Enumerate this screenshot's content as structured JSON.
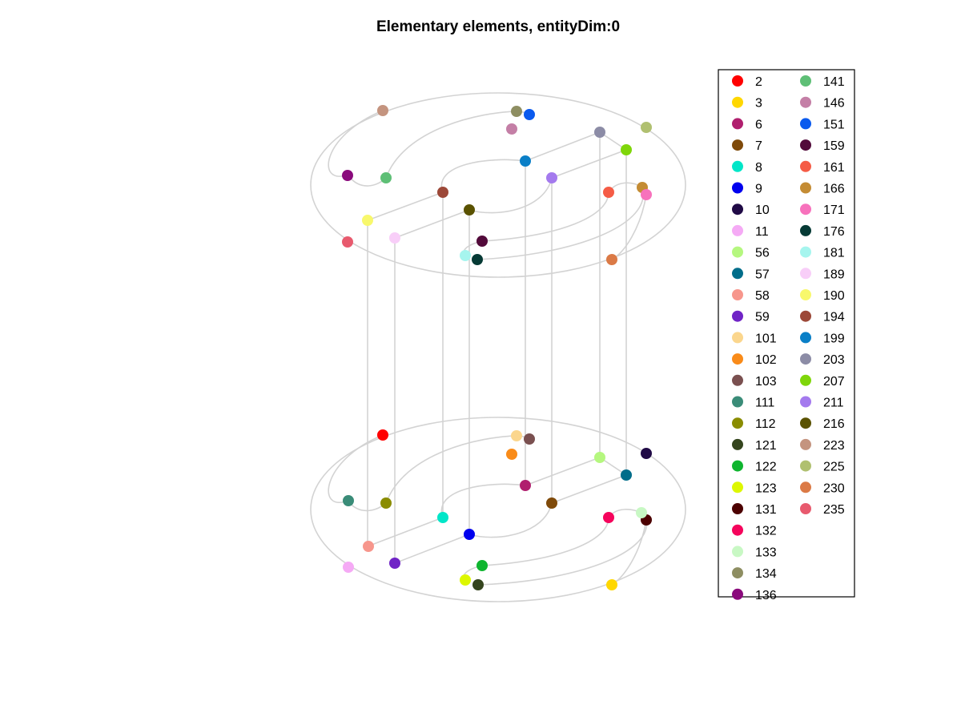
{
  "title": "Elementary elements, entityDim:0",
  "chart_data": {
    "type": "scatter",
    "plot_kind": "3d-point-scatter-over-wireframe-geometry",
    "title": "Elementary elements, entityDim:0",
    "grid": false,
    "axes_visible": false,
    "geometry_color": "#d3d3d3",
    "legend_position": "right",
    "legend_columns": 2,
    "series": [
      {
        "name": "2",
        "color": "#ff0000"
      },
      {
        "name": "3",
        "color": "#ffd700"
      },
      {
        "name": "6",
        "color": "#b01f6e"
      },
      {
        "name": "7",
        "color": "#7f4a0a"
      },
      {
        "name": "8",
        "color": "#00e6c8"
      },
      {
        "name": "9",
        "color": "#0000ee"
      },
      {
        "name": "10",
        "color": "#200a46"
      },
      {
        "name": "11",
        "color": "#f5aaf5"
      },
      {
        "name": "56",
        "color": "#b5f77f"
      },
      {
        "name": "57",
        "color": "#006d8a"
      },
      {
        "name": "58",
        "color": "#f7968c"
      },
      {
        "name": "59",
        "color": "#7024c6"
      },
      {
        "name": "101",
        "color": "#fbd68d"
      },
      {
        "name": "102",
        "color": "#f98b19"
      },
      {
        "name": "103",
        "color": "#7a5050"
      },
      {
        "name": "111",
        "color": "#3a8c78"
      },
      {
        "name": "112",
        "color": "#8a8c00"
      },
      {
        "name": "121",
        "color": "#35451e"
      },
      {
        "name": "122",
        "color": "#0fb52f"
      },
      {
        "name": "123",
        "color": "#ddf700"
      },
      {
        "name": "131",
        "color": "#4c0000"
      },
      {
        "name": "132",
        "color": "#f5045c"
      },
      {
        "name": "133",
        "color": "#c8f8c4"
      },
      {
        "name": "134",
        "color": "#8e8e62"
      },
      {
        "name": "136",
        "color": "#8a0a7c"
      },
      {
        "name": "141",
        "color": "#5ebf76"
      },
      {
        "name": "146",
        "color": "#c47fa6"
      },
      {
        "name": "151",
        "color": "#0a5aee"
      },
      {
        "name": "159",
        "color": "#520a3a"
      },
      {
        "name": "161",
        "color": "#f55c46"
      },
      {
        "name": "166",
        "color": "#c48c34"
      },
      {
        "name": "171",
        "color": "#f772bc"
      },
      {
        "name": "176",
        "color": "#063a35"
      },
      {
        "name": "181",
        "color": "#a6f5ee"
      },
      {
        "name": "189",
        "color": "#f8cef8"
      },
      {
        "name": "190",
        "color": "#f8f86c"
      },
      {
        "name": "194",
        "color": "#9c4838"
      },
      {
        "name": "199",
        "color": "#0a7fc7"
      },
      {
        "name": "203",
        "color": "#8c8ca6"
      },
      {
        "name": "207",
        "color": "#7fd60a"
      },
      {
        "name": "211",
        "color": "#a47aee"
      },
      {
        "name": "216",
        "color": "#5a5200"
      },
      {
        "name": "223",
        "color": "#c4947f"
      },
      {
        "name": "225",
        "color": "#b0c070"
      },
      {
        "name": "230",
        "color": "#db7a46"
      },
      {
        "name": "235",
        "color": "#e85a6e"
      }
    ]
  }
}
